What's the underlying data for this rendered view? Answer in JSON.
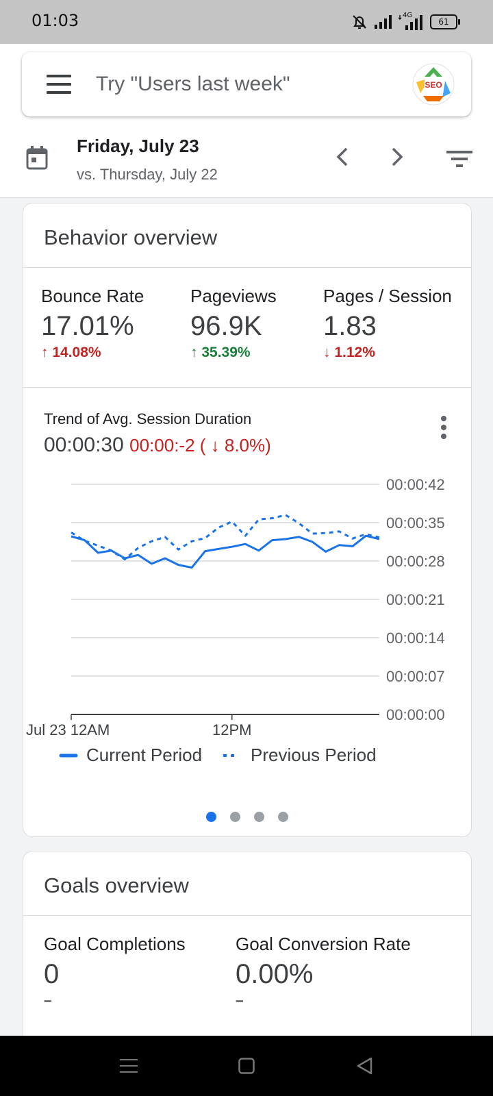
{
  "status_bar": {
    "time": "01:03",
    "network": "4G",
    "battery": "61"
  },
  "search": {
    "placeholder": "Try \"Users last week\"",
    "avatar_text": "SEO"
  },
  "date_bar": {
    "title": "Friday, July 23",
    "compare": "vs. Thursday, July 22"
  },
  "behavior": {
    "title": "Behavior overview",
    "metrics": [
      {
        "label": "Bounce Rate",
        "value": "17.01%",
        "delta": "↑ 14.08%",
        "delta_color": "#c5221f"
      },
      {
        "label": "Pageviews",
        "value": "96.9K",
        "delta": "↑ 35.39%",
        "delta_color": "#188038"
      },
      {
        "label": "Pages / Session",
        "value": "1.83",
        "delta": "↓ 1.12%",
        "delta_color": "#c5221f"
      }
    ],
    "trend": {
      "title": "Trend of Avg. Session Duration",
      "value": "00:00:30",
      "change": "00:00:-2 ( ↓ 8.0%)"
    },
    "pager": {
      "count": 4,
      "active": 0
    }
  },
  "goals": {
    "title": "Goals overview",
    "metrics": [
      {
        "label": "Goal Completions",
        "value": "0",
        "delta": "–"
      },
      {
        "label": "Goal Conversion Rate",
        "value": "0.00%",
        "delta": "–"
      }
    ]
  },
  "chart_data": {
    "type": "line",
    "title": "Trend of Avg. Session Duration",
    "x_tick_labels": [
      "Jul 23 12AM",
      "12PM"
    ],
    "x_range_hours": [
      0,
      23
    ],
    "y_tick_labels": [
      "00:00:00",
      "00:00:07",
      "00:00:14",
      "00:00:21",
      "00:00:28",
      "00:00:35",
      "00:00:42"
    ],
    "ylim_seconds": [
      0,
      42
    ],
    "grid": true,
    "legend": "bottom",
    "colors": {
      "current": "#1a73e8",
      "previous": "#1a73e8"
    },
    "series": [
      {
        "name": "Current Period",
        "style": "solid",
        "x": [
          0,
          1,
          2,
          3,
          4,
          5,
          6,
          7,
          8,
          9,
          10,
          11,
          12,
          13,
          14,
          15,
          16,
          17,
          18,
          19,
          20,
          21,
          22,
          23
        ],
        "values": [
          32.5,
          31.8,
          29.5,
          29.9,
          28.5,
          29.1,
          27.5,
          28.5,
          27.3,
          26.8,
          29.8,
          30.2,
          30.6,
          31.1,
          29.9,
          31.8,
          32.0,
          32.4,
          31.5,
          29.7,
          30.9,
          30.7,
          32.6,
          32.0
        ]
      },
      {
        "name": "Previous Period",
        "style": "dashed",
        "x": [
          0,
          1,
          2,
          3,
          4,
          5,
          6,
          7,
          8,
          9,
          10,
          11,
          12,
          13,
          14,
          15,
          16,
          17,
          18,
          19,
          20,
          21,
          22,
          23
        ],
        "values": [
          33.2,
          31.7,
          30.8,
          29.9,
          28.3,
          30.4,
          31.6,
          32.4,
          30.1,
          31.6,
          32.2,
          34.1,
          35.2,
          32.6,
          35.6,
          35.8,
          36.4,
          34.9,
          33.0,
          33.1,
          33.4,
          32.1,
          32.9,
          32.3
        ]
      }
    ]
  }
}
